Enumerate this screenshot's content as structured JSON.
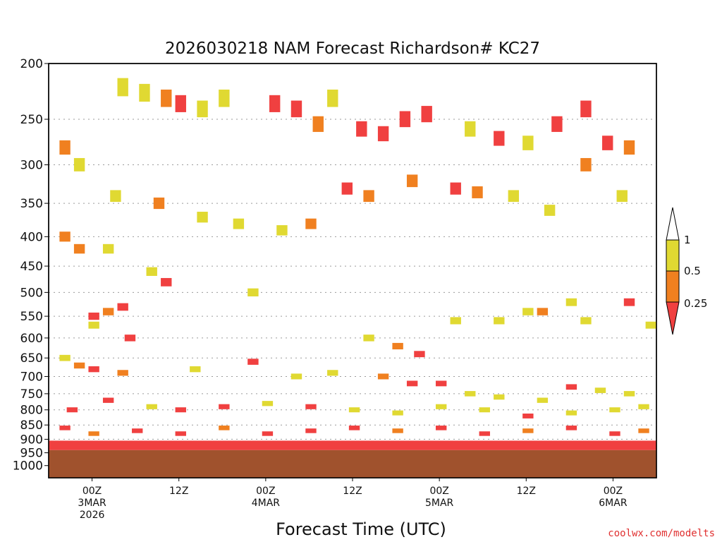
{
  "chart_data": {
    "type": "heatmap",
    "title": "2026030218 NAM Forecast Richardson# KC27",
    "xlabel": "Forecast Time (UTC)",
    "ylabel": "Pressure (mb)",
    "credit": "coolwx.com/modelts",
    "y_ticks": [
      "200",
      "250",
      "300",
      "350",
      "400",
      "450",
      "500",
      "550",
      "600",
      "650",
      "700",
      "750",
      "800",
      "850",
      "900",
      "950",
      "1000"
    ],
    "ylim": [
      1050,
      200
    ],
    "xlim_hours": [
      -6,
      78
    ],
    "x_ticks": [
      {
        "hour": 0,
        "lines": [
          "00Z",
          "3MAR",
          "2026"
        ]
      },
      {
        "hour": 12,
        "lines": [
          "12Z"
        ]
      },
      {
        "hour": 24,
        "lines": [
          "00Z",
          "4MAR"
        ]
      },
      {
        "hour": 36,
        "lines": [
          "12Z"
        ]
      },
      {
        "hour": 48,
        "lines": [
          "00Z",
          "5MAR"
        ]
      },
      {
        "hour": 60,
        "lines": [
          "12Z"
        ]
      },
      {
        "hour": 72,
        "lines": [
          "00Z",
          "6MAR"
        ]
      }
    ],
    "legend": {
      "placement": "right",
      "levels": [
        "1",
        "0.5",
        "0.25"
      ],
      "colors": [
        "#ffffff",
        "#e0d932",
        "#f08020",
        "#f04040"
      ]
    },
    "terrain_below_mb": 940,
    "categories_key": "1 = Ri 0.5-1 (yellow), 2 = Ri 0.25-0.5 (orange), 3 = Ri < 0.25 (red)",
    "cells": [
      {
        "hour": 4,
        "p": 220,
        "cat": 1
      },
      {
        "hour": 7,
        "p": 225,
        "cat": 1
      },
      {
        "hour": 10,
        "p": 230,
        "cat": 2
      },
      {
        "hour": 12,
        "p": 235,
        "cat": 3
      },
      {
        "hour": 15,
        "p": 240,
        "cat": 1
      },
      {
        "hour": 18,
        "p": 230,
        "cat": 1
      },
      {
        "hour": 25,
        "p": 235,
        "cat": 3
      },
      {
        "hour": 28,
        "p": 240,
        "cat": 3
      },
      {
        "hour": 31,
        "p": 255,
        "cat": 2
      },
      {
        "hour": 33,
        "p": 230,
        "cat": 1
      },
      {
        "hour": 37,
        "p": 260,
        "cat": 3
      },
      {
        "hour": 40,
        "p": 265,
        "cat": 3
      },
      {
        "hour": 43,
        "p": 250,
        "cat": 3
      },
      {
        "hour": 46,
        "p": 245,
        "cat": 3
      },
      {
        "hour": 52,
        "p": 260,
        "cat": 1
      },
      {
        "hour": 56,
        "p": 270,
        "cat": 3
      },
      {
        "hour": 60,
        "p": 275,
        "cat": 1
      },
      {
        "hour": 64,
        "p": 255,
        "cat": 3
      },
      {
        "hour": 68,
        "p": 240,
        "cat": 3
      },
      {
        "hour": 71,
        "p": 275,
        "cat": 3
      },
      {
        "hour": 74,
        "p": 280,
        "cat": 2
      },
      {
        "hour": -4,
        "p": 280,
        "cat": 2
      },
      {
        "hour": -2,
        "p": 300,
        "cat": 1
      },
      {
        "hour": 3,
        "p": 340,
        "cat": 1
      },
      {
        "hour": 9,
        "p": 350,
        "cat": 2
      },
      {
        "hour": 15,
        "p": 370,
        "cat": 1
      },
      {
        "hour": 20,
        "p": 380,
        "cat": 1
      },
      {
        "hour": 26,
        "p": 390,
        "cat": 1
      },
      {
        "hour": 30,
        "p": 380,
        "cat": 2
      },
      {
        "hour": 35,
        "p": 330,
        "cat": 3
      },
      {
        "hour": 38,
        "p": 340,
        "cat": 2
      },
      {
        "hour": 44,
        "p": 320,
        "cat": 2
      },
      {
        "hour": 50,
        "p": 330,
        "cat": 3
      },
      {
        "hour": 53,
        "p": 335,
        "cat": 2
      },
      {
        "hour": 58,
        "p": 340,
        "cat": 1
      },
      {
        "hour": 63,
        "p": 360,
        "cat": 1
      },
      {
        "hour": 68,
        "p": 300,
        "cat": 2
      },
      {
        "hour": 73,
        "p": 340,
        "cat": 1
      },
      {
        "hour": -4,
        "p": 400,
        "cat": 2
      },
      {
        "hour": -2,
        "p": 420,
        "cat": 2
      },
      {
        "hour": 2,
        "p": 420,
        "cat": 1
      },
      {
        "hour": 8,
        "p": 460,
        "cat": 1
      },
      {
        "hour": 10,
        "p": 480,
        "cat": 3
      },
      {
        "hour": 0,
        "p": 550,
        "cat": 3
      },
      {
        "hour": 2,
        "p": 540,
        "cat": 2
      },
      {
        "hour": 4,
        "p": 530,
        "cat": 3
      },
      {
        "hour": 0,
        "p": 570,
        "cat": 1
      },
      {
        "hour": 5,
        "p": 600,
        "cat": 3
      },
      {
        "hour": 22,
        "p": 500,
        "cat": 1
      },
      {
        "hour": 38,
        "p": 600,
        "cat": 1
      },
      {
        "hour": 42,
        "p": 620,
        "cat": 2
      },
      {
        "hour": 45,
        "p": 640,
        "cat": 3
      },
      {
        "hour": 50,
        "p": 560,
        "cat": 1
      },
      {
        "hour": 56,
        "p": 560,
        "cat": 1
      },
      {
        "hour": 60,
        "p": 540,
        "cat": 1
      },
      {
        "hour": 62,
        "p": 540,
        "cat": 2
      },
      {
        "hour": 66,
        "p": 520,
        "cat": 1
      },
      {
        "hour": 68,
        "p": 560,
        "cat": 1
      },
      {
        "hour": 74,
        "p": 520,
        "cat": 3
      },
      {
        "hour": 77,
        "p": 570,
        "cat": 1
      },
      {
        "hour": -4,
        "p": 650,
        "cat": 1
      },
      {
        "hour": -2,
        "p": 670,
        "cat": 2
      },
      {
        "hour": 0,
        "p": 680,
        "cat": 3
      },
      {
        "hour": 4,
        "p": 690,
        "cat": 2
      },
      {
        "hour": 14,
        "p": 680,
        "cat": 1
      },
      {
        "hour": 22,
        "p": 660,
        "cat": 3
      },
      {
        "hour": 28,
        "p": 700,
        "cat": 1
      },
      {
        "hour": 33,
        "p": 690,
        "cat": 1
      },
      {
        "hour": 40,
        "p": 700,
        "cat": 2
      },
      {
        "hour": 44,
        "p": 720,
        "cat": 3
      },
      {
        "hour": 48,
        "p": 720,
        "cat": 3
      },
      {
        "hour": 52,
        "p": 750,
        "cat": 1
      },
      {
        "hour": 56,
        "p": 760,
        "cat": 1
      },
      {
        "hour": 62,
        "p": 770,
        "cat": 1
      },
      {
        "hour": 66,
        "p": 730,
        "cat": 3
      },
      {
        "hour": 70,
        "p": 740,
        "cat": 1
      },
      {
        "hour": 74,
        "p": 750,
        "cat": 1
      },
      {
        "hour": -3,
        "p": 800,
        "cat": 3
      },
      {
        "hour": 2,
        "p": 770,
        "cat": 3
      },
      {
        "hour": 8,
        "p": 790,
        "cat": 1
      },
      {
        "hour": 12,
        "p": 800,
        "cat": 3
      },
      {
        "hour": 18,
        "p": 790,
        "cat": 3
      },
      {
        "hour": 24,
        "p": 780,
        "cat": 1
      },
      {
        "hour": 30,
        "p": 790,
        "cat": 3
      },
      {
        "hour": 36,
        "p": 800,
        "cat": 1
      },
      {
        "hour": 42,
        "p": 810,
        "cat": 1
      },
      {
        "hour": 48,
        "p": 790,
        "cat": 1
      },
      {
        "hour": 54,
        "p": 800,
        "cat": 1
      },
      {
        "hour": 60,
        "p": 820,
        "cat": 3
      },
      {
        "hour": 66,
        "p": 810,
        "cat": 1
      },
      {
        "hour": 72,
        "p": 800,
        "cat": 1
      },
      {
        "hour": 76,
        "p": 790,
        "cat": 1
      },
      {
        "hour": -4,
        "p": 860,
        "cat": 3
      },
      {
        "hour": 0,
        "p": 880,
        "cat": 2
      },
      {
        "hour": 6,
        "p": 870,
        "cat": 3
      },
      {
        "hour": 12,
        "p": 880,
        "cat": 3
      },
      {
        "hour": 18,
        "p": 860,
        "cat": 2
      },
      {
        "hour": 24,
        "p": 880,
        "cat": 3
      },
      {
        "hour": 30,
        "p": 870,
        "cat": 3
      },
      {
        "hour": 36,
        "p": 860,
        "cat": 3
      },
      {
        "hour": 42,
        "p": 870,
        "cat": 2
      },
      {
        "hour": 48,
        "p": 860,
        "cat": 3
      },
      {
        "hour": 54,
        "p": 880,
        "cat": 3
      },
      {
        "hour": 60,
        "p": 870,
        "cat": 2
      },
      {
        "hour": 66,
        "p": 860,
        "cat": 3
      },
      {
        "hour": 72,
        "p": 880,
        "cat": 3
      },
      {
        "hour": 76,
        "p": 870,
        "cat": 2
      }
    ]
  }
}
